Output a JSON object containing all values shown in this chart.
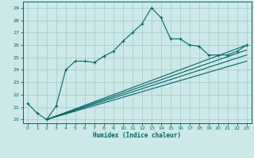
{
  "title": "",
  "xlabel": "Humidex (Indice chaleur)",
  "bg_color": "#cce8e8",
  "grid_color": "#aacccc",
  "line_color": "#006666",
  "xlim": [
    -0.5,
    23.5
  ],
  "ylim": [
    19.7,
    29.5
  ],
  "xticks": [
    0,
    1,
    2,
    3,
    4,
    5,
    6,
    7,
    8,
    9,
    10,
    11,
    12,
    13,
    14,
    15,
    16,
    17,
    18,
    19,
    20,
    21,
    22,
    23
  ],
  "yticks": [
    20,
    21,
    22,
    23,
    24,
    25,
    26,
    27,
    28,
    29
  ],
  "line1_x": [
    0,
    1,
    2,
    3,
    4,
    5,
    6,
    7,
    8,
    9,
    10,
    11,
    12,
    13,
    14,
    15,
    16,
    17,
    18,
    19,
    20,
    21,
    22,
    23
  ],
  "line1_y": [
    21.3,
    20.5,
    20.0,
    21.1,
    24.0,
    24.7,
    24.7,
    24.6,
    25.1,
    25.5,
    26.3,
    27.0,
    27.7,
    29.0,
    28.2,
    26.5,
    26.5,
    26.0,
    25.9,
    25.2,
    25.2,
    25.2,
    25.5,
    26.0
  ],
  "line2_x": [
    2,
    23
  ],
  "line2_y": [
    20.0,
    26.0
  ],
  "line3_x": [
    2,
    23
  ],
  "line3_y": [
    20.0,
    25.6
  ],
  "line4_x": [
    2,
    23
  ],
  "line4_y": [
    20.0,
    25.2
  ],
  "line5_x": [
    2,
    23
  ],
  "line5_y": [
    20.0,
    24.7
  ]
}
